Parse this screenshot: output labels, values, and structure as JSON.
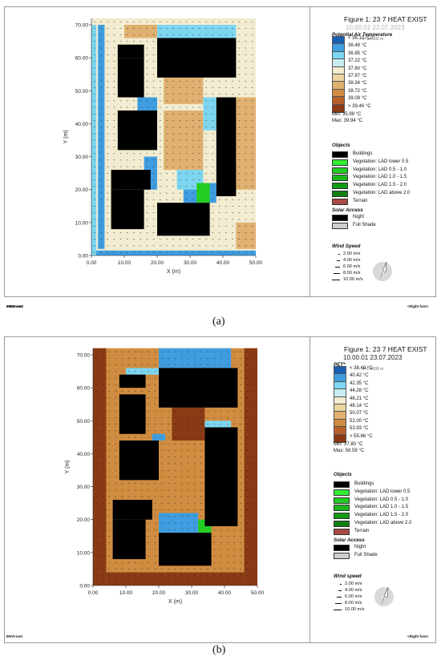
{
  "chart_data": [
    {
      "type": "heatmap",
      "figure_title": "Figure 1: 23 7 HEAT EXIST",
      "figure_subtitle": "10.00.01 23.07.2023",
      "variable": "Potential Air Temperature",
      "height_note": "z=1.4000 m",
      "unit": "°C",
      "legend_labels": [
        "< 36.10 °C",
        "36.48 °C",
        "36.85 °C",
        "37.22 °C",
        "37.60 °C",
        "37.97 °C",
        "38.34 °C",
        "38.72 °C",
        "39.09 °C",
        "> 39.46 °C"
      ],
      "min": "Min: 35.99 °C",
      "max": "Max: 39.94 °C",
      "xlabel": "X (m)",
      "ylabel": "Y (m)",
      "xticks": [
        "0.00",
        "10.00",
        "20.00",
        "30.00",
        "40.00",
        "50.00"
      ],
      "yticks": [
        "0.00",
        "10.00",
        "20.00",
        "30.00",
        "40.00",
        "50.00",
        "60.00",
        "70.00"
      ],
      "xlim": [
        0,
        50
      ],
      "ylim": [
        0,
        70
      ],
      "buildings": [
        [
          8,
          60,
          16,
          64
        ],
        [
          8,
          48,
          16,
          60
        ],
        [
          20,
          54,
          44,
          66
        ],
        [
          8,
          32,
          20,
          44
        ],
        [
          38,
          18,
          44,
          48
        ],
        [
          6,
          20,
          18,
          26
        ],
        [
          6,
          8,
          16,
          20
        ],
        [
          20,
          6,
          36,
          16
        ]
      ],
      "vegetation": [
        [
          32,
          16,
          36,
          22
        ]
      ],
      "cool_regions": [
        [
          0,
          0,
          50,
          1.5
        ],
        [
          0,
          0,
          1.5,
          70
        ],
        [
          2,
          2,
          4,
          70
        ],
        [
          20,
          66,
          44,
          70
        ],
        [
          14,
          44,
          20,
          48
        ],
        [
          34,
          38,
          38,
          48
        ],
        [
          28,
          16,
          38,
          22
        ],
        [
          26,
          20,
          34,
          26
        ],
        [
          16,
          20,
          20,
          30
        ]
      ],
      "warm_regions": [
        [
          22,
          46,
          34,
          54
        ],
        [
          22,
          26,
          34,
          44
        ],
        [
          44,
          2,
          50,
          10
        ],
        [
          44,
          20,
          50,
          48
        ],
        [
          10,
          66,
          20,
          70
        ]
      ]
    },
    {
      "type": "heatmap",
      "figure_title": "Figure 1: 23 7 HEAT EXIST",
      "figure_subtitle": "10.00.01 23.07.2023",
      "variable": "PET*",
      "height_note": "z=1.4000 m",
      "unit": "°C",
      "legend_labels": [
        "< 38.49 °C",
        "40.42 °C",
        "42.35 °C",
        "44.28 °C",
        "46.21 °C",
        "48.14 °C",
        "50.07 °C",
        "52.00 °C",
        "53.93 °C",
        "> 55.86 °C"
      ],
      "min": "Min: 37.80 °C",
      "max": "Max: 58.59 °C",
      "xlabel": "X (m)",
      "ylabel": "Y (m)",
      "xticks": [
        "0.00",
        "10.00",
        "20.00",
        "30.00",
        "40.00",
        "50.00"
      ],
      "yticks": [
        "0.00",
        "10.00",
        "20.00",
        "30.00",
        "40.00",
        "50.00",
        "60.00",
        "70.00"
      ],
      "xlim": [
        0,
        50
      ],
      "ylim": [
        0,
        70
      ],
      "buildings": [
        [
          8,
          60,
          16,
          64
        ],
        [
          8,
          46,
          16,
          58
        ],
        [
          20,
          54,
          44,
          66
        ],
        [
          8,
          32,
          20,
          44
        ],
        [
          34,
          18,
          44,
          48
        ],
        [
          6,
          20,
          18,
          26
        ],
        [
          6,
          8,
          16,
          20
        ],
        [
          20,
          6,
          36,
          16
        ]
      ],
      "vegetation": [
        [
          32,
          16,
          36,
          20
        ]
      ],
      "cool_regions": [
        [
          20,
          66,
          42,
          72
        ],
        [
          10,
          64,
          20,
          66
        ],
        [
          18,
          44,
          22,
          46
        ],
        [
          34,
          46,
          42,
          50
        ],
        [
          20,
          16,
          32,
          22
        ],
        [
          6,
          16,
          10,
          20
        ]
      ],
      "warm_regions": [
        [
          0,
          0,
          4,
          72
        ],
        [
          46,
          0,
          50,
          72
        ],
        [
          4,
          0,
          46,
          4
        ],
        [
          24,
          44,
          34,
          54
        ]
      ]
    }
  ],
  "objects": {
    "title": "Objects",
    "items": [
      {
        "label": "Buildings",
        "color": "#000000"
      },
      {
        "label": "Vegetation: LAD lower 0.5",
        "color": "#33ee33"
      },
      {
        "label": "Vegetation: LAD 0.5 - 1.0",
        "color": "#22cc22"
      },
      {
        "label": "Vegetation: LAD 1.0 - 1.5",
        "color": "#1db51d"
      },
      {
        "label": "Vegetation: LAD 1.5 - 2.0",
        "color": "#159a15"
      },
      {
        "label": "Vegetation: LAD above 2.0",
        "color": "#0f800f"
      },
      {
        "label": "Terrain",
        "color": "#a84a44"
      }
    ]
  },
  "solar": {
    "title": "Solar Access",
    "items": [
      {
        "label": "Night",
        "color": "#000000"
      },
      {
        "label": "Full Shade",
        "color": "#cfcfcf"
      }
    ]
  },
  "wind": {
    "title_a": "Wind Speed",
    "title_b": "Wind speed",
    "items": [
      "2.00 m/s",
      "4.00 m/s",
      "6.00 m/s",
      "8.00 m/s",
      "10.00 m/s"
    ]
  },
  "footer": {
    "left": "ENVI-met",
    "right": "<Right foot>"
  },
  "captions": {
    "a": "(a)",
    "b": "(b)"
  },
  "colors": {
    "scale_a": [
      "#1a5fb4",
      "#3f9de0",
      "#7dd6f0",
      "#c8ecf2",
      "#f2ecd0",
      "#ecd4a0",
      "#e0b070",
      "#d08c40",
      "#b8602a",
      "#8a3a14"
    ],
    "scale_b": [
      "#1a5fb4",
      "#3f9de0",
      "#7dd6f0",
      "#c8ecf2",
      "#f2ecd0",
      "#ecd4a0",
      "#e0b070",
      "#d08c40",
      "#b8602a",
      "#8a3a14"
    ]
  }
}
